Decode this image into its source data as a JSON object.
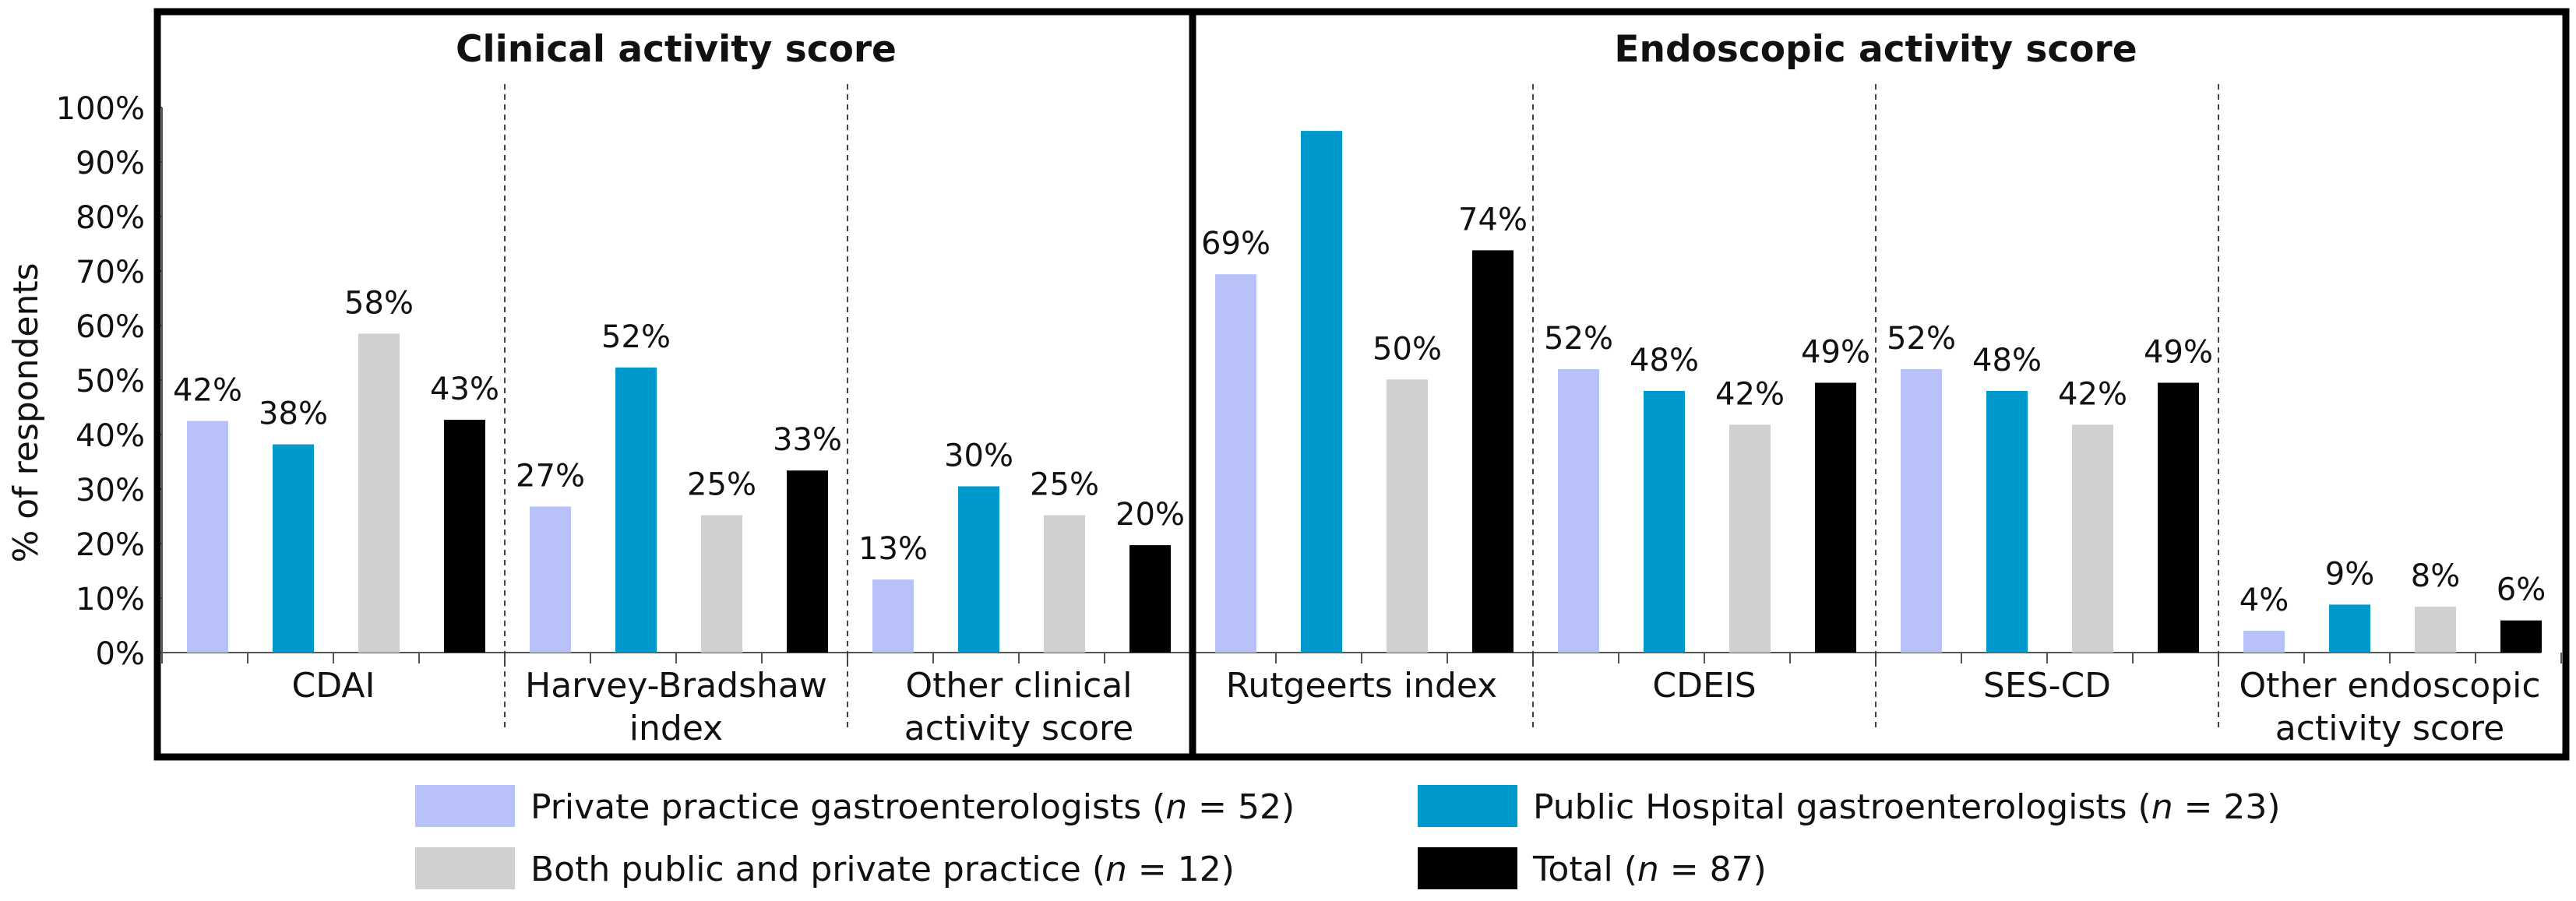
{
  "chart_data": {
    "type": "bar",
    "ylabel": "% of respondents",
    "ylim": [
      0,
      100
    ],
    "yticks": [
      "0%",
      "10%",
      "20%",
      "30%",
      "40%",
      "50%",
      "60%",
      "70%",
      "80%",
      "90%",
      "100%"
    ],
    "grid": false,
    "legend_position": "bottom",
    "panels": [
      {
        "title": "Clinical activity score",
        "categories": [
          {
            "label_lines": [
              "CDAI"
            ],
            "values": [
              42.5,
              38.2,
              58.5,
              42.7
            ],
            "labels": [
              "42%",
              "38%",
              "58%",
              "43%"
            ]
          },
          {
            "label_lines": [
              "Harvey-Bradshaw",
              "index"
            ],
            "values": [
              26.8,
              52.3,
              25.2,
              33.4
            ],
            "labels": [
              "27%",
              "52%",
              "25%",
              "33%"
            ]
          },
          {
            "label_lines": [
              "Other clinical",
              "activity score"
            ],
            "values": [
              13.4,
              30.5,
              25.2,
              19.7
            ],
            "labels": [
              "13%",
              "30%",
              "25%",
              "20%"
            ]
          }
        ]
      },
      {
        "title": "Endoscopic activity score",
        "categories": [
          {
            "label_lines": [
              "Rutgeerts index"
            ],
            "values": [
              69.4,
              95.7,
              50.1,
              73.8
            ],
            "labels": [
              "69%",
              "",
              "50%",
              "74%"
            ]
          },
          {
            "label_lines": [
              "CDEIS"
            ],
            "values": [
              52.0,
              48.0,
              41.8,
              49.5
            ],
            "labels": [
              "52%",
              "48%",
              "42%",
              "49%"
            ]
          },
          {
            "label_lines": [
              "SES-CD"
            ],
            "values": [
              52.0,
              48.0,
              41.8,
              49.5
            ],
            "labels": [
              "52%",
              "48%",
              "42%",
              "49%"
            ]
          },
          {
            "label_lines": [
              "Other endoscopic",
              "activity score"
            ],
            "values": [
              4.0,
              8.8,
              8.4,
              5.9
            ],
            "labels": [
              "4%",
              "9%",
              "8%",
              "6%"
            ]
          }
        ]
      }
    ],
    "series": [
      {
        "name_prefix": "Private practice gastroenterologists (",
        "n_var": "n",
        "name_suffix": " = 52)",
        "color": "#b8c2f9"
      },
      {
        "name_prefix": "Public Hospital gastroenterologists (",
        "n_var": "n",
        "name_suffix": " = 23)",
        "color": "#0099cc"
      },
      {
        "name_prefix": "Both public and private practice (",
        "n_var": "n",
        "name_suffix": " = 12)",
        "color": "#d1cfcf"
      },
      {
        "name_prefix": "Total (",
        "n_var": "n",
        "name_suffix": " = 87)",
        "color": "#000000"
      }
    ]
  }
}
